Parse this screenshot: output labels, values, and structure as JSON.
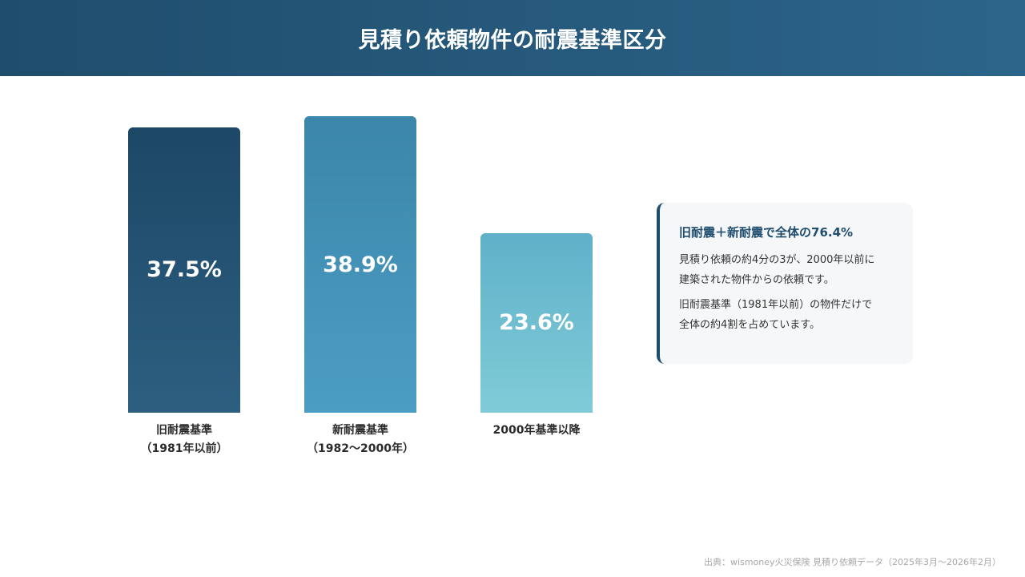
{
  "header": {
    "title": "見積り依頼物件の耐震基準区分"
  },
  "chart_data": {
    "type": "bar",
    "title": "見積り依頼物件の耐震基準区分",
    "categories": [
      [
        "旧耐震基準",
        "（1981年以前）"
      ],
      [
        "新耐震基準",
        "（1982〜2000年）"
      ],
      [
        "2000年基準以降",
        ""
      ]
    ],
    "values": [
      37.5,
      38.9,
      23.6
    ],
    "value_labels": [
      "37.5%",
      "38.9%",
      "23.6%"
    ],
    "colors": [
      [
        "#1d4766",
        "#2d5f80"
      ],
      [
        "#3b86aa",
        "#4c9dc3"
      ],
      [
        "#5fb1c9",
        "#80cbd7"
      ]
    ],
    "ylim": [
      0,
      40
    ],
    "grid": false,
    "xlabel": "",
    "ylabel": ""
  },
  "insight": {
    "title": "旧耐震＋新耐震で全体の76.4%",
    "paragraph1_line1": "見積り依頼の約4分の3が、2000年以前に",
    "paragraph1_line2": "建築された物件からの依頼です。",
    "paragraph2_line1": "旧耐震基準（1981年以前）の物件だけで",
    "paragraph2_line2": "全体の約4割を占めています。"
  },
  "footer": {
    "source": "出典：wismoney火災保険 見積り依頼データ（2025年3月〜2026年2月）"
  }
}
